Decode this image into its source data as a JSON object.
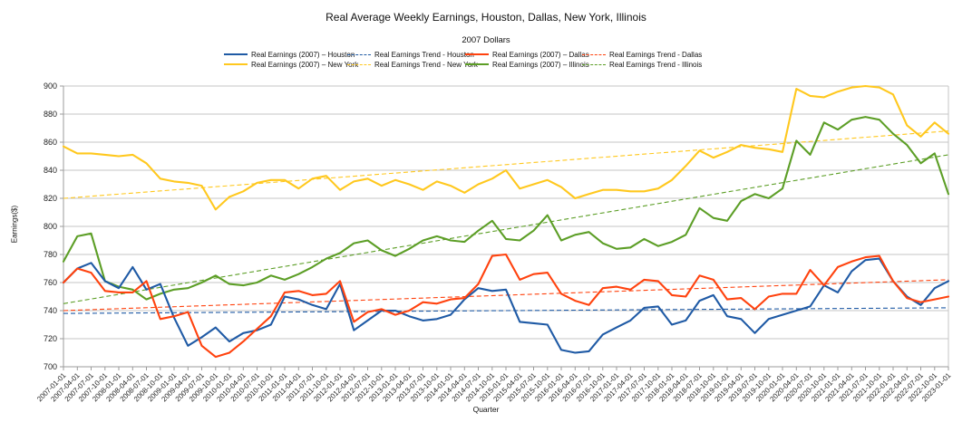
{
  "chart_data": {
    "type": "line",
    "title": "Real Average Weekly Earnings, Houston, Dallas, New York, Illinois",
    "subtitle": "2007 Dollars",
    "xlabel": "Quarter",
    "ylabel": "Earnings($)",
    "ylim": [
      700,
      900
    ],
    "y_ticks": [
      700,
      720,
      740,
      760,
      780,
      800,
      820,
      840,
      860,
      880,
      900
    ],
    "grid": true,
    "legend_position": "top",
    "x": [
      "2007-01-01",
      "2007-04-01",
      "2007-07-01",
      "2007-10-01",
      "2008-01-01",
      "2008-04-01",
      "2008-07-01",
      "2008-10-01",
      "2009-01-01",
      "2009-04-01",
      "2009-07-01",
      "2009-10-01",
      "2010-01-01",
      "2010-04-01",
      "2010-07-01",
      "2010-10-01",
      "2011-01-01",
      "2011-04-01",
      "2011-07-01",
      "2011-10-01",
      "2012-01-01",
      "2012-04-01",
      "2012-07-01",
      "2012-10-01",
      "2013-01-01",
      "2013-04-01",
      "2013-07-01",
      "2013-10-01",
      "2014-01-01",
      "2014-04-01",
      "2014-07-01",
      "2014-10-01",
      "2015-01-01",
      "2015-04-01",
      "2015-07-01",
      "2015-10-01",
      "2016-01-01",
      "2016-04-01",
      "2016-07-01",
      "2016-10-01",
      "2017-01-01",
      "2017-04-01",
      "2017-07-01",
      "2017-10-01",
      "2018-01-01",
      "2018-04-01",
      "2018-07-01",
      "2018-10-01",
      "2019-01-01",
      "2019-04-01",
      "2019-07-01",
      "2019-10-01",
      "2020-01-01",
      "2020-04-01",
      "2020-07-01",
      "2020-10-01",
      "2021-01-01",
      "2021-04-01",
      "2021-07-01",
      "2021-10-01",
      "2022-01-01",
      "2022-04-01",
      "2022-07-01",
      "2022-10-01",
      "2023-01-01"
    ],
    "series": [
      {
        "key": "houston",
        "name": "Real Earnings (2007) – Houston",
        "color": "#1F5AA5",
        "style": "solid",
        "values": [
          760,
          770,
          774,
          761,
          756,
          771,
          755,
          759,
          735,
          715,
          721,
          728,
          718,
          724,
          726,
          730,
          750,
          748,
          744,
          741,
          759,
          726,
          733,
          740,
          740,
          736,
          733,
          734,
          737,
          748,
          756,
          754,
          755,
          732,
          731,
          730,
          712,
          710,
          711,
          723,
          728,
          733,
          742,
          743,
          730,
          733,
          747,
          751,
          736,
          734,
          724,
          734,
          737,
          740,
          743,
          758,
          753,
          768,
          776,
          777,
          761,
          750,
          744,
          756,
          761
        ]
      },
      {
        "key": "houston-trend",
        "name": "Real Earnings Trend - Houston",
        "color": "#1F5AA5",
        "style": "dashed",
        "trend": [
          738,
          742
        ]
      },
      {
        "key": "dallas",
        "name": "Real Earnings (2007) – Dallas",
        "color": "#FF420E",
        "style": "solid",
        "values": [
          760,
          770,
          767,
          754,
          753,
          753,
          761,
          734,
          736,
          739,
          715,
          707,
          710,
          718,
          727,
          736,
          753,
          754,
          751,
          752,
          761,
          732,
          739,
          741,
          737,
          740,
          746,
          745,
          748,
          749,
          759,
          779,
          780,
          762,
          766,
          767,
          752,
          747,
          744,
          756,
          757,
          755,
          762,
          761,
          751,
          750,
          765,
          762,
          748,
          749,
          741,
          750,
          752,
          752,
          769,
          758,
          771,
          775,
          778,
          779,
          761,
          749,
          746,
          748,
          750
        ]
      },
      {
        "key": "dallas-trend",
        "name": "Real Earnings Trend - Dallas",
        "color": "#FF420E",
        "style": "dashed",
        "trend": [
          740,
          762
        ]
      },
      {
        "key": "new-york",
        "name": "Real Earnings (2007) – New York",
        "color": "#FFC81E",
        "style": "solid",
        "values": [
          857,
          852,
          852,
          851,
          850,
          851,
          845,
          834,
          832,
          831,
          829,
          812,
          821,
          825,
          831,
          833,
          833,
          827,
          834,
          836,
          826,
          832,
          834,
          829,
          833,
          830,
          826,
          832,
          829,
          824,
          830,
          834,
          840,
          827,
          830,
          833,
          828,
          820,
          823,
          826,
          826,
          825,
          825,
          827,
          833,
          843,
          854,
          849,
          853,
          858,
          856,
          855,
          853,
          898,
          893,
          892,
          896,
          899,
          900,
          899,
          894,
          872,
          864,
          874,
          866
        ]
      },
      {
        "key": "new-york-trend",
        "name": "Real Earnings Trend - New York",
        "color": "#FFC81E",
        "style": "dashed",
        "trend": [
          820,
          868
        ]
      },
      {
        "key": "illinois",
        "name": "Real Earnings (2007) – Illinois",
        "color": "#5C9E26",
        "style": "solid",
        "values": [
          775,
          793,
          795,
          761,
          757,
          755,
          748,
          752,
          755,
          756,
          760,
          765,
          759,
          758,
          760,
          765,
          762,
          766,
          771,
          777,
          781,
          788,
          790,
          783,
          779,
          784,
          790,
          793,
          790,
          789,
          797,
          804,
          791,
          790,
          797,
          808,
          790,
          794,
          796,
          788,
          784,
          785,
          791,
          786,
          789,
          794,
          813,
          806,
          804,
          818,
          823,
          820,
          827,
          861,
          851,
          874,
          869,
          876,
          878,
          876,
          866,
          858,
          845,
          852,
          823
        ]
      },
      {
        "key": "illinois-trend",
        "name": "Real Earnings Trend - Illinois",
        "color": "#5C9E26",
        "style": "dashed",
        "trend": [
          745,
          851
        ]
      }
    ]
  }
}
